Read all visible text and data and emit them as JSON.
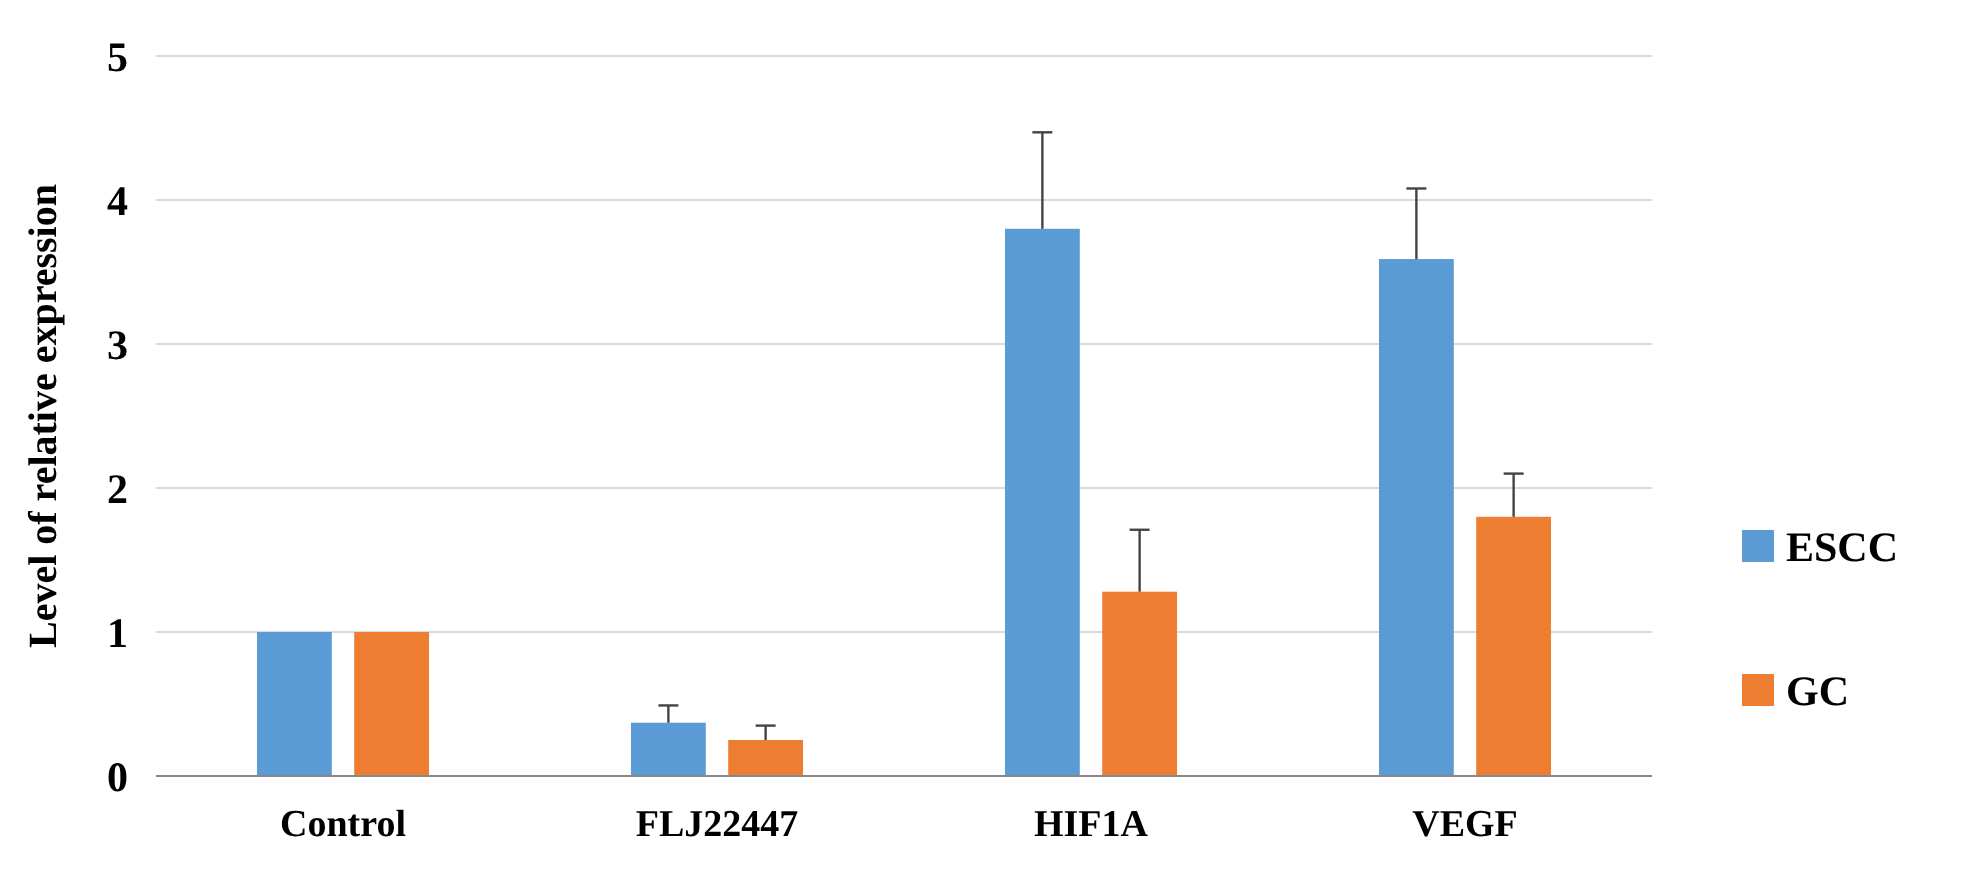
{
  "chart_data": {
    "type": "bar",
    "ylabel": "Level of relative expression",
    "categories": [
      "Control",
      "FLJ22447",
      "HIF1A",
      "VEGF"
    ],
    "series": [
      {
        "name": "ESCC",
        "color": "#5b9bd5",
        "values": [
          1,
          0.37,
          3.8,
          3.59
        ],
        "errors": [
          null,
          [
            0.37,
            0.49
          ],
          [
            3.8,
            4.47
          ],
          [
            3.59,
            4.08
          ]
        ]
      },
      {
        "name": "GC",
        "color": "#ed7d31",
        "values": [
          1,
          0.25,
          1.28,
          1.8
        ],
        "errors": [
          null,
          [
            0.25,
            0.35
          ],
          [
            1.28,
            1.71
          ],
          [
            1.8,
            2.1
          ]
        ]
      }
    ],
    "ylim": [
      0,
      5
    ],
    "yticks": [
      0,
      1,
      2,
      3,
      4,
      5
    ],
    "grid": "y",
    "legend": "right"
  }
}
